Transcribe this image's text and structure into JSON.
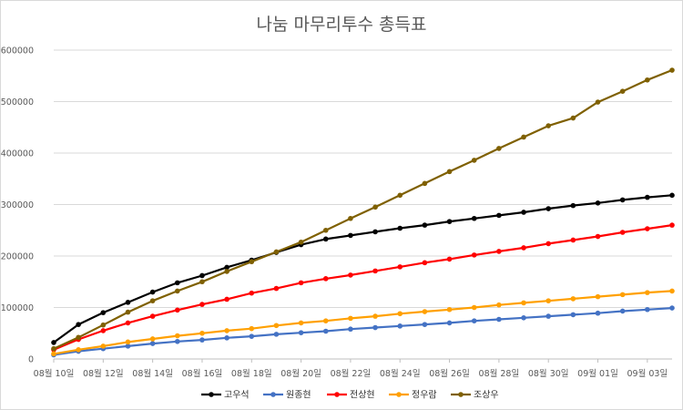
{
  "chart_data": {
    "type": "line",
    "title": "나눔 마무리투수 총득표",
    "xlabel": "",
    "ylabel": "",
    "ylim": [
      0,
      600000
    ],
    "yticks": [
      0,
      100000,
      200000,
      300000,
      400000,
      500000,
      600000
    ],
    "ytick_labels": [
      "0",
      "100000",
      "200000",
      "300000",
      "400000",
      "500000",
      "600000"
    ],
    "x": [
      "08월 10일",
      "08월 11일",
      "08월 12일",
      "08월 13일",
      "08월 14일",
      "08월 15일",
      "08월 16일",
      "08월 17일",
      "08월 18일",
      "08월 19일",
      "08월 20일",
      "08월 21일",
      "08월 22일",
      "08월 23일",
      "08월 24일",
      "08월 25일",
      "08월 26일",
      "08월 27일",
      "08월 28일",
      "08월 29일",
      "08월 30일",
      "08월 31일",
      "09월 01일",
      "09월 02일",
      "09월 03일",
      "09월 04일"
    ],
    "xtick_labels": [
      "08월 10일",
      "08월 12일",
      "08월 14일",
      "08월 16일",
      "08월 18일",
      "08월 20일",
      "08월 22일",
      "08월 24일",
      "08월 26일",
      "08월 28일",
      "08월 30일",
      "09월 01일",
      "09월 03일"
    ],
    "grid": true,
    "legend_position": "bottom",
    "series": [
      {
        "name": "고우석",
        "color": "#000000",
        "values": [
          32000,
          67000,
          90000,
          110000,
          130000,
          148000,
          162000,
          178000,
          192000,
          207000,
          222000,
          233000,
          240000,
          247000,
          254000,
          260000,
          267000,
          273000,
          279000,
          285000,
          292000,
          298000,
          303000,
          309000,
          314000,
          318000
        ]
      },
      {
        "name": "원종현",
        "color": "#4472c4",
        "values": [
          8000,
          15000,
          20000,
          25000,
          30000,
          34000,
          37000,
          41000,
          44000,
          48000,
          51000,
          54000,
          58000,
          61000,
          64000,
          67000,
          70000,
          74000,
          77000,
          80000,
          83000,
          86000,
          89000,
          93000,
          96000,
          99000
        ]
      },
      {
        "name": "전상현",
        "color": "#ff0000",
        "values": [
          18000,
          38000,
          55000,
          70000,
          83000,
          95000,
          106000,
          116000,
          128000,
          137000,
          148000,
          156000,
          163000,
          171000,
          179000,
          187000,
          194000,
          202000,
          209000,
          216000,
          224000,
          231000,
          238000,
          246000,
          253000,
          260000
        ]
      },
      {
        "name": "정우람",
        "color": "#ffa000",
        "values": [
          10000,
          18000,
          25000,
          33000,
          39000,
          45000,
          50000,
          55000,
          59000,
          65000,
          70000,
          74000,
          79000,
          83000,
          88000,
          92000,
          96000,
          100000,
          105000,
          109000,
          113000,
          117000,
          121000,
          125000,
          129000,
          132000
        ]
      },
      {
        "name": "조상우",
        "color": "#7f6000",
        "values": [
          20000,
          42000,
          66000,
          91000,
          113000,
          132000,
          150000,
          170000,
          189000,
          208000,
          227000,
          250000,
          273000,
          295000,
          318000,
          341000,
          364000,
          386000,
          409000,
          431000,
          453000,
          468000,
          499000,
          520000,
          542000,
          561000
        ]
      }
    ]
  }
}
